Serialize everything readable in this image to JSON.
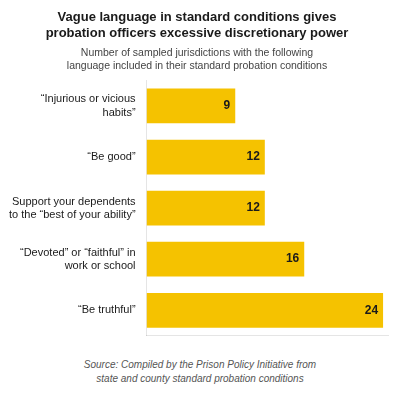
{
  "chart_data": {
    "type": "bar",
    "orientation": "horizontal",
    "title": "Vague language in standard conditions gives\nprobation officers excessive discretionary power",
    "subtitle": "Number of sampled jurisdictions with the following\nlanguage included in their standard probation conditions",
    "source": "Source: Compiled by the Prison Policy Initiative from\nstate and county standard probation conditions",
    "categories": [
      "“Injurious or vicious\nhabits”",
      "“Be good”",
      "Support your dependents\nto the “best of your ability”",
      "“Devoted” or “faithful” in\nwork or school",
      "“Be truthful”"
    ],
    "values": [
      9,
      12,
      12,
      16,
      24
    ],
    "color": "#F5C200",
    "xlim": [
      0,
      24.5
    ],
    "grid": false,
    "data_labels": true,
    "tick_labels": "y"
  }
}
